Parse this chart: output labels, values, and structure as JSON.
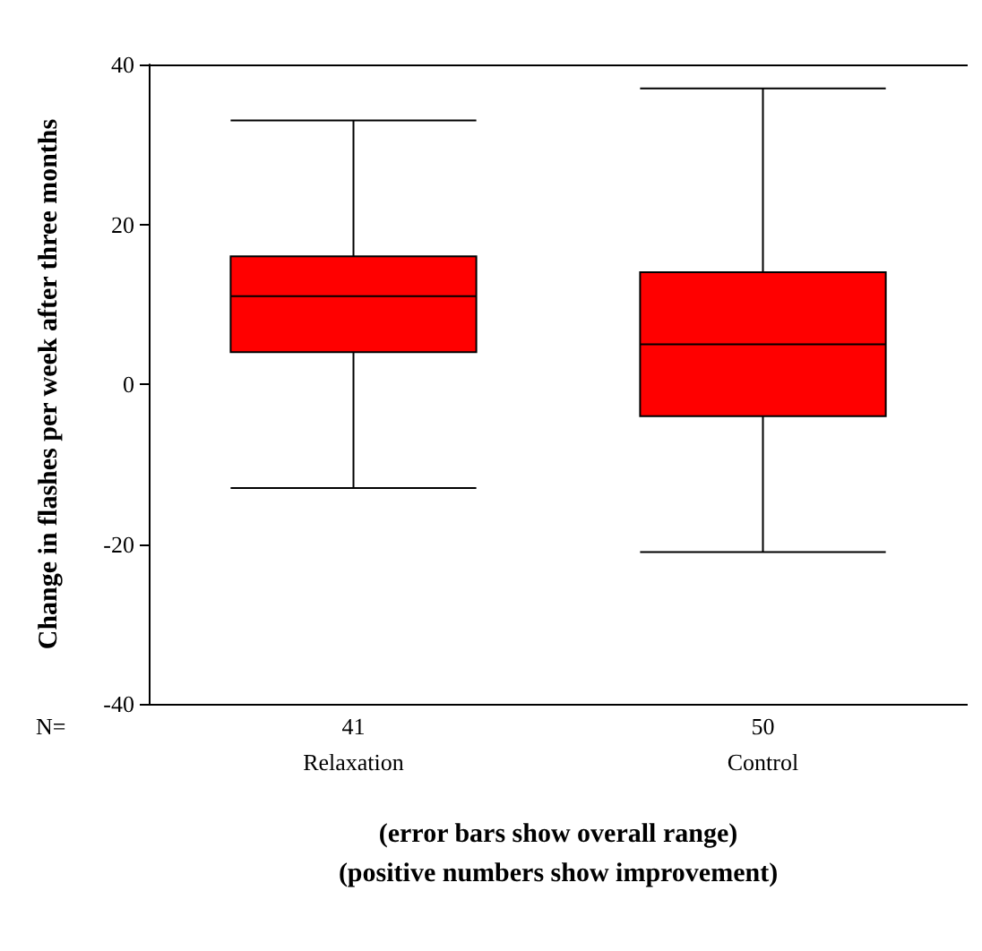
{
  "chart_data": {
    "type": "box",
    "categories": [
      "Relaxation",
      "Control"
    ],
    "boxes": [
      {
        "low": -13,
        "q1": 4,
        "median": 11,
        "q3": 16,
        "high": 33
      },
      {
        "low": -21,
        "q1": -4,
        "median": 5,
        "q3": 14,
        "high": 37
      }
    ],
    "color": "#ff0000",
    "ylabel": "Change in flashes per week after three months",
    "xlabel": "(error bars show overall range)\n(positive numbers show improvement)",
    "ylim": [
      -40,
      40
    ],
    "yticks": [
      -40,
      -20,
      0,
      20,
      40
    ],
    "grid": false,
    "annotations": [
      "N=",
      "41",
      "50"
    ]
  }
}
